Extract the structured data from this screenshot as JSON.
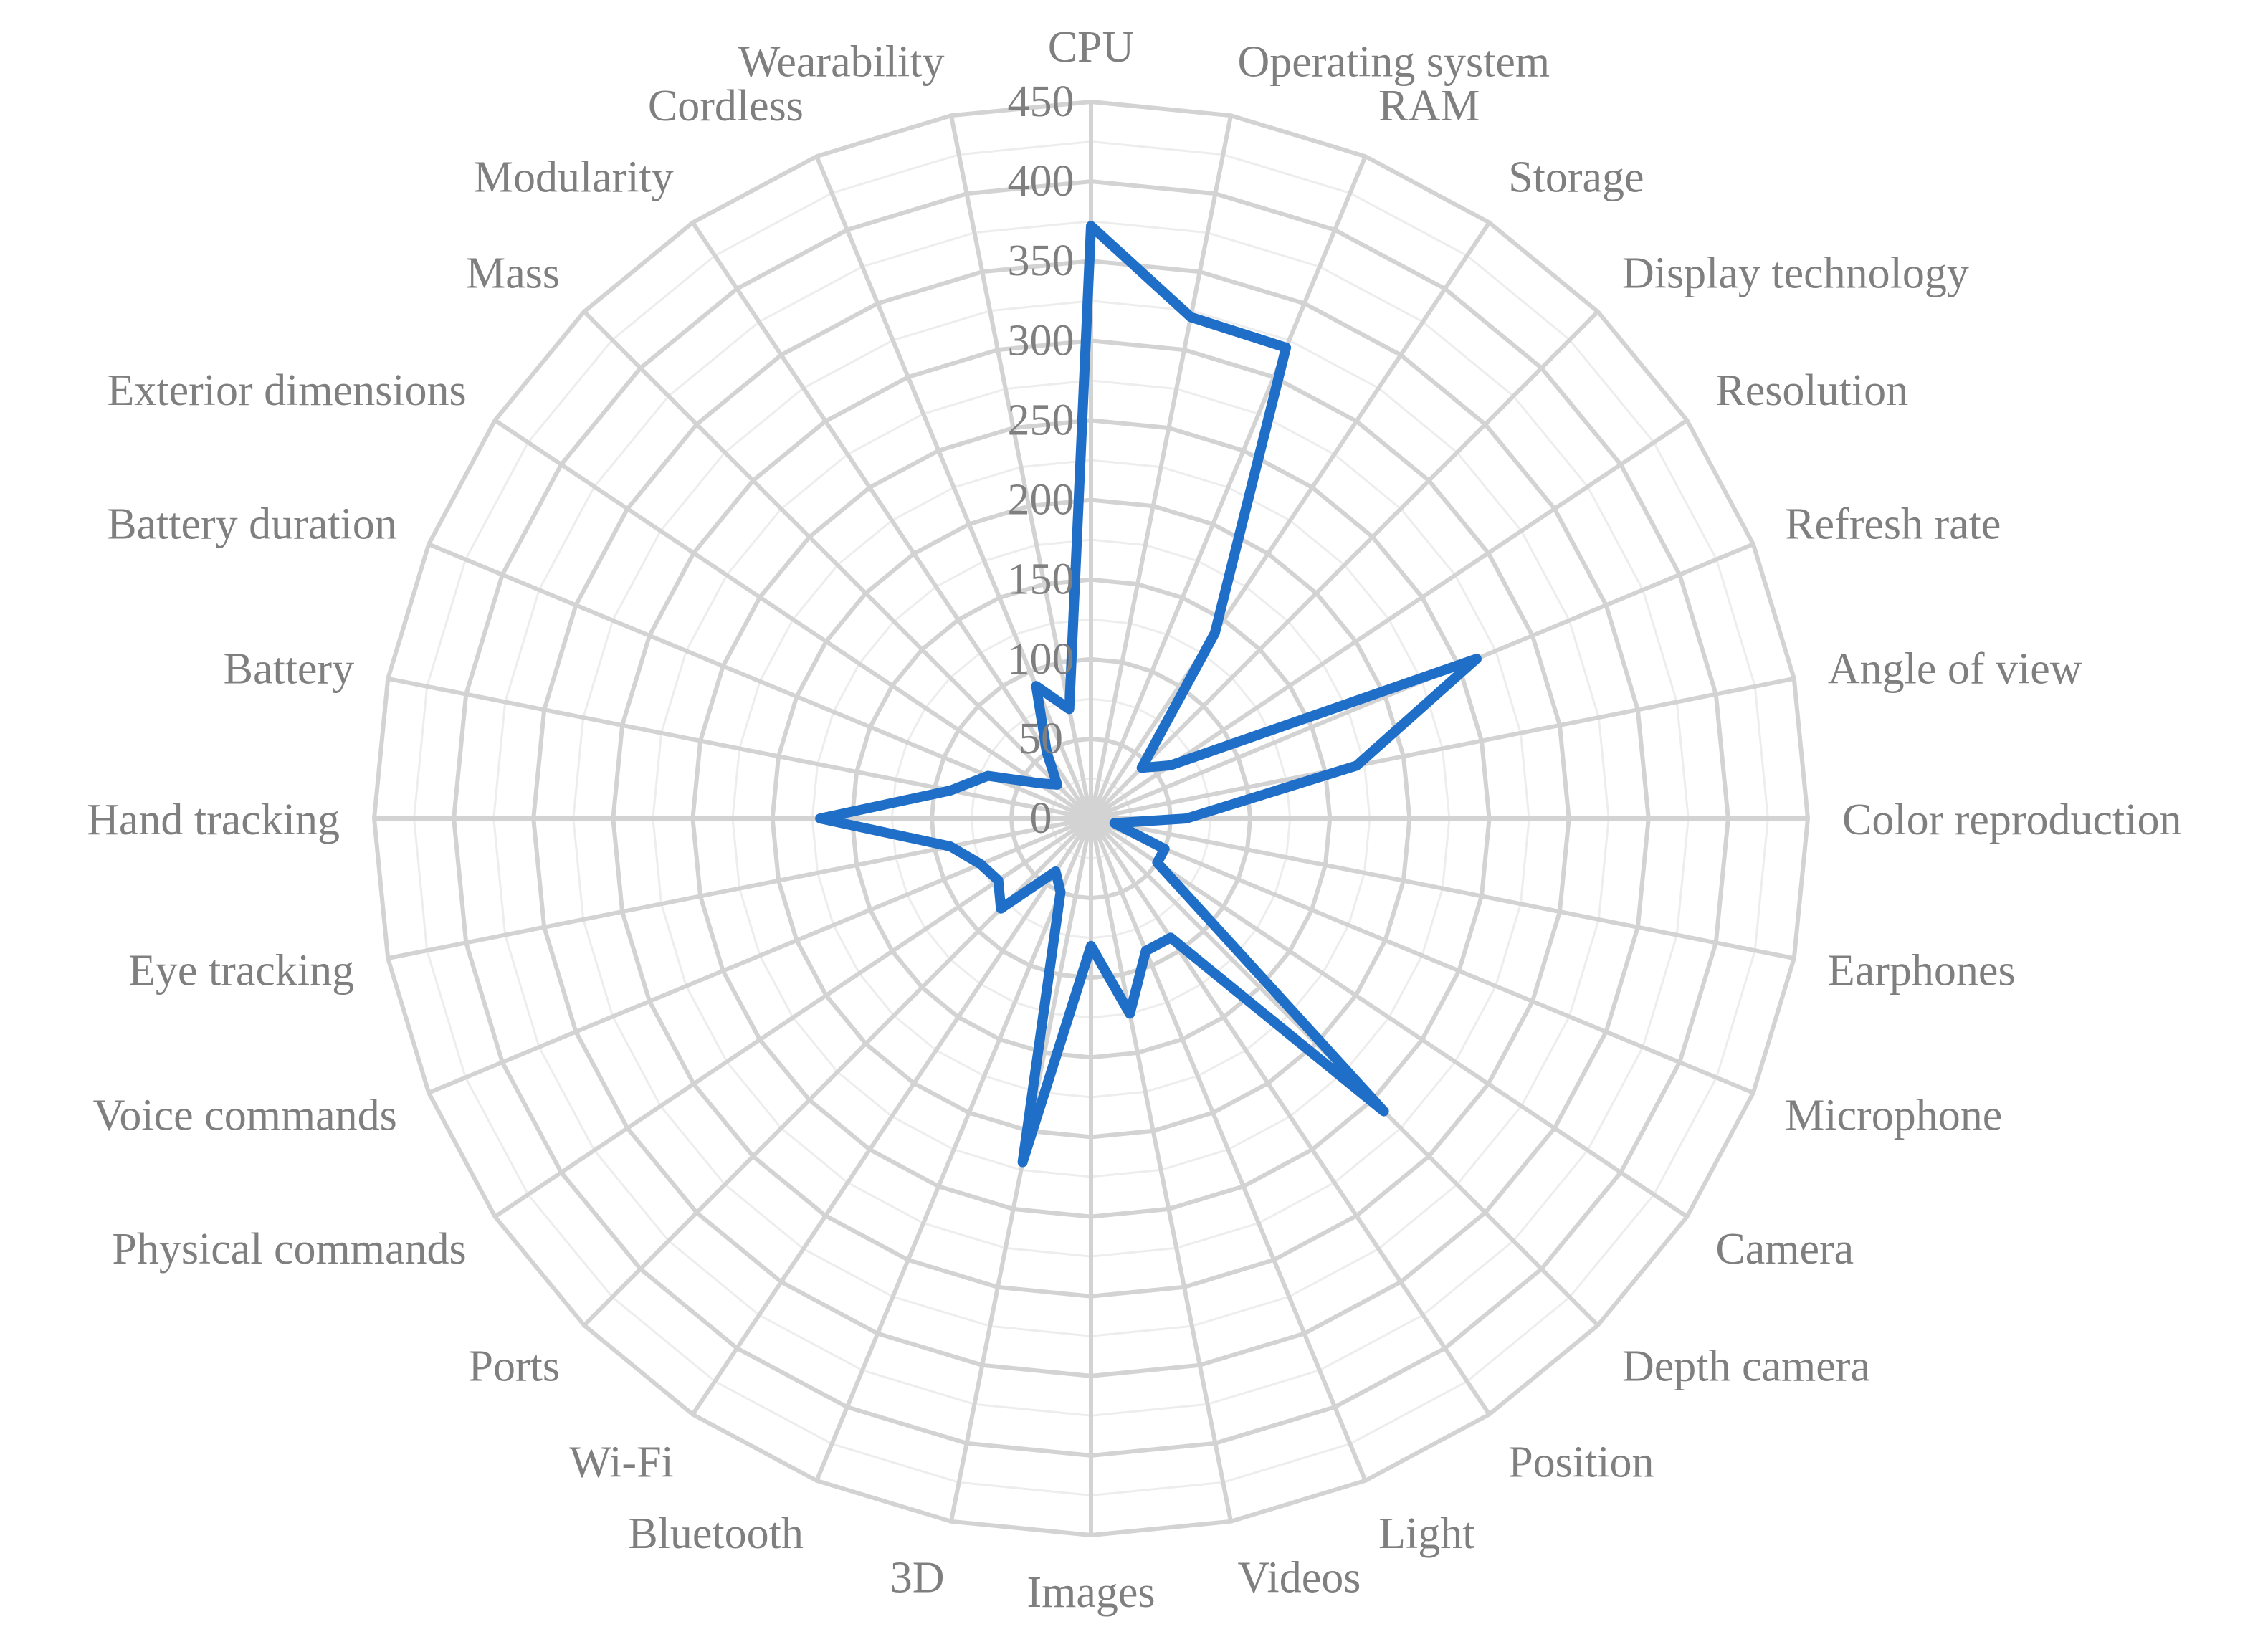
{
  "chart_data": {
    "type": "radar",
    "title": "",
    "series_color": "#1f6fc8",
    "rmax": 450,
    "tick_step": 50,
    "minor_step": 25,
    "ticks": [
      "0",
      "50",
      "100",
      "150",
      "200",
      "250",
      "300",
      "350",
      "400",
      "450"
    ],
    "categories": [
      "CPU",
      "Operating system",
      "RAM",
      "Storage",
      "Display technology",
      "Resolution",
      "Refresh rate",
      "Angle of view",
      "Color reproduction",
      "Earphones",
      "Microphone",
      "Camera",
      "Depth camera",
      "Position",
      "Light",
      "Videos",
      "Images",
      "3D",
      "Bluetooth",
      "Wi-Fi",
      "Ports",
      "Physical commands",
      "Voice commands",
      "Eye tracking",
      "Hand tracking",
      "Battery",
      "Battery duration",
      "Exterior dimensions",
      "Mass",
      "Modularity",
      "Cordless",
      "Wearability"
    ],
    "series": [
      {
        "values": [
          372,
          321,
          320,
          140,
          45,
          60,
          262,
          170,
          60,
          15,
          50,
          50,
          260,
          90,
          90,
          125,
          80,
          220,
          50,
          40,
          80,
          70,
          75,
          90,
          170,
          90,
          70,
          40,
          30,
          50,
          90,
          70
        ]
      }
    ]
  }
}
